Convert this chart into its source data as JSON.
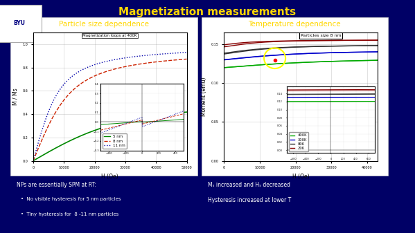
{
  "title": "Magnetization measurements",
  "title_color": "#FFD700",
  "slide_bg": "#000066",
  "panel_bg": "#f0f0f0",
  "left_heading": "Particle size dependence",
  "right_heading": "Temperature dependence",
  "left_plot_title": "Magnetization loops at 400K",
  "right_plot_annotation": "Particles size 8 nm",
  "left_xlabel": "H (Oe)",
  "left_ylabel": "M / Ms",
  "right_xlabel": "H (Oe)",
  "right_ylabel": "Moment (emu)",
  "left_legend": [
    "5 nm",
    "8 nm",
    "11 nm"
  ],
  "left_colors": [
    "#008800",
    "#CC2200",
    "#0000AA"
  ],
  "left_linestyles": [
    "-",
    "--",
    ":"
  ],
  "right_legend": [
    "400K",
    "300K",
    "80K",
    "20K"
  ],
  "right_colors": [
    "#00AA00",
    "#0000CC",
    "#333333",
    "#880000"
  ],
  "bottom_left_text": "NPs are essentially SPM at RT:",
  "bullet1": "No visible hysteresis for 5 nm particles",
  "bullet2": "Tiny hysteresis for  8 -11 nm particles",
  "bottom_right_text1": "Mₛ increased and Hₛ decreased",
  "bottom_right_text2": "Hysteresis increased at lower T",
  "heading_color": "#FFD700",
  "text_color": "#FFFFFF"
}
